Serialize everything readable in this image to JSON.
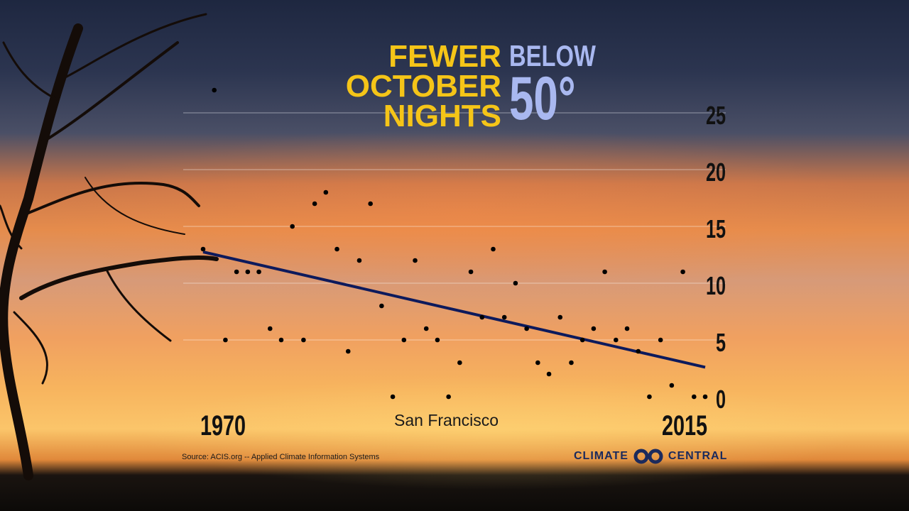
{
  "title": {
    "line1": "FEWER",
    "line2": "OCTOBER",
    "line3": "NIGHTS",
    "below": "BELOW",
    "degrees": "50°"
  },
  "location": "San Francisco",
  "source": "Source: ACIS.org -- Applied Climate Information Systems",
  "logo": {
    "left": "CLIMATE",
    "right": "CENTRAL"
  },
  "colors": {
    "title_yellow": "#f5c518",
    "title_blue": "#a9b8f0",
    "trend": "#0d1a5c",
    "dots": "#000000"
  },
  "chart_data": {
    "type": "scatter",
    "title": "Fewer October Nights Below 50°",
    "xlabel": "",
    "ylabel": "",
    "x_tick_labels": [
      "1970",
      "2015"
    ],
    "y_ticks": [
      "0",
      "5",
      "10",
      "15",
      "20",
      "25"
    ],
    "xlim": [
      1970,
      2015
    ],
    "ylim": [
      0,
      25
    ],
    "grid": true,
    "x": [
      1970,
      1971,
      1972,
      1973,
      1974,
      1975,
      1976,
      1977,
      1978,
      1979,
      1980,
      1981,
      1982,
      1983,
      1984,
      1985,
      1986,
      1987,
      1988,
      1989,
      1990,
      1991,
      1992,
      1993,
      1994,
      1995,
      1996,
      1997,
      1998,
      1999,
      2000,
      2001,
      2002,
      2003,
      2004,
      2005,
      2006,
      2007,
      2008,
      2009,
      2010,
      2011,
      2012,
      2013,
      2014,
      2015
    ],
    "values": [
      13,
      27,
      5,
      11,
      11,
      11,
      6,
      5,
      15,
      5,
      17,
      18,
      13,
      4,
      12,
      17,
      8,
      0,
      5,
      12,
      6,
      5,
      0,
      3,
      11,
      7,
      13,
      7,
      10,
      6,
      3,
      2,
      7,
      3,
      5,
      6,
      11,
      5,
      6,
      4,
      0,
      5,
      1,
      11,
      0,
      0
    ],
    "trend": {
      "start": [
        1970,
        12.75
      ],
      "end": [
        2015,
        2.6
      ]
    }
  }
}
